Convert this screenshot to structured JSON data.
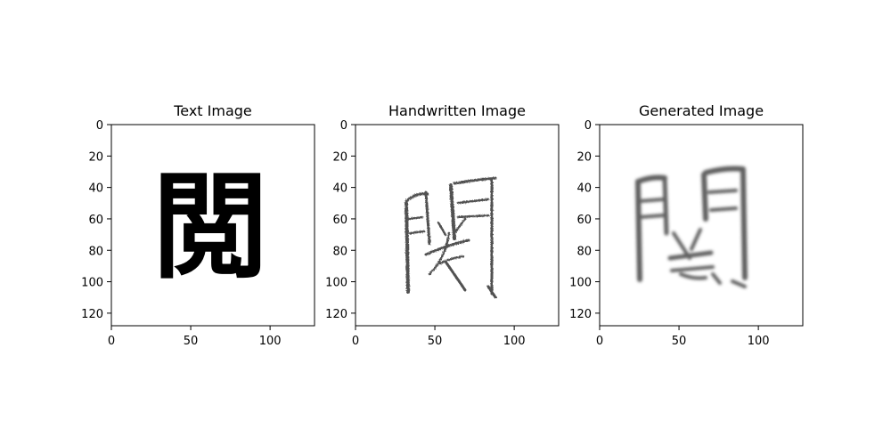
{
  "chart_data": [
    {
      "type": "image",
      "title": "Text Image",
      "image_content": "閲",
      "image_style": "printed glyph",
      "xlim": [
        0,
        128
      ],
      "ylim": [
        128,
        0
      ],
      "xticks": [
        0,
        50,
        100
      ],
      "yticks": [
        0,
        20,
        40,
        60,
        80,
        100,
        120
      ]
    },
    {
      "type": "image",
      "title": "Handwritten Image",
      "image_content": "閲",
      "image_style": "handwritten glyph",
      "xlim": [
        0,
        128
      ],
      "ylim": [
        128,
        0
      ],
      "xticks": [
        0,
        50,
        100
      ],
      "yticks": [
        0,
        20,
        40,
        60,
        80,
        100,
        120
      ]
    },
    {
      "type": "image",
      "title": "Generated Image",
      "image_content": "閲",
      "image_style": "generated glyph",
      "xlim": [
        0,
        128
      ],
      "ylim": [
        128,
        0
      ],
      "xticks": [
        0,
        50,
        100
      ],
      "yticks": [
        0,
        20,
        40,
        60,
        80,
        100,
        120
      ]
    }
  ]
}
